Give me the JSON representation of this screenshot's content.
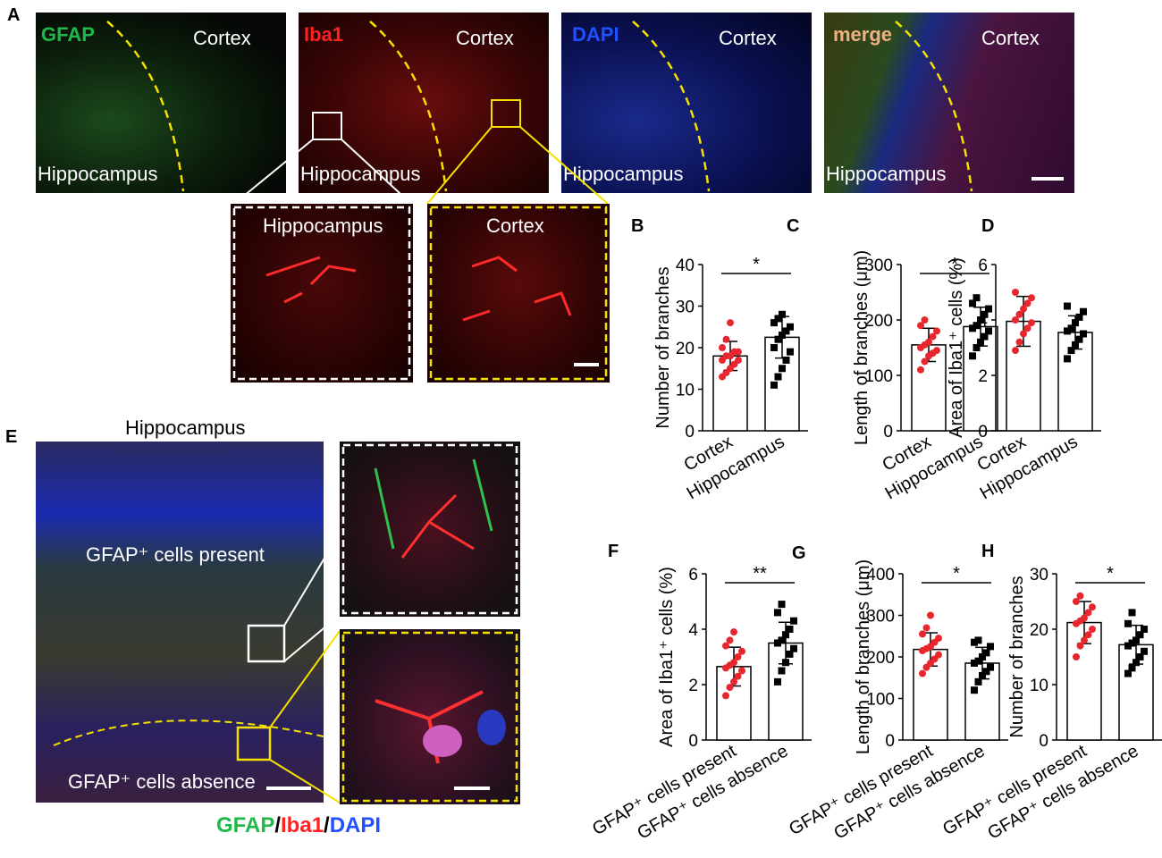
{
  "panel_letters": {
    "A": "A",
    "B": "B",
    "C": "C",
    "D": "D",
    "E": "E",
    "F": "F",
    "G": "G",
    "H": "H"
  },
  "panel_A": {
    "images": [
      {
        "channel": "GFAP",
        "region_top": "Cortex",
        "region_bottom": "Hippocampus",
        "channel_color": "#1fb84a"
      },
      {
        "channel": "Iba1",
        "region_top": "Cortex",
        "region_bottom": "Hippocampus",
        "channel_color": "#ff2020"
      },
      {
        "channel": "DAPI",
        "region_top": "Cortex",
        "region_bottom": "Hippocampus",
        "channel_color": "#2050ff"
      },
      {
        "channel": "merge",
        "region_top": "Cortex",
        "region_bottom": "Hippocampus",
        "channel_color": "#f0b080"
      }
    ],
    "insets": [
      {
        "label": "Hippocampus",
        "border_color": "#ffffff"
      },
      {
        "label": "Cortex",
        "border_color": "#f5e000"
      }
    ]
  },
  "panel_E": {
    "title": "Hippocampus",
    "label_present": "GFAP⁺ cells present",
    "label_absence": "GFAP⁺ cells absence",
    "legend": {
      "gfap": "GFAP",
      "slash1": "/",
      "iba1": "Iba1",
      "slash2": "/",
      "dapi": "DAPI"
    },
    "legend_colors": {
      "gfap": "#1fb84a",
      "iba1": "#ff2020",
      "dapi": "#2050ff"
    }
  },
  "chart_data": [
    {
      "id": "B",
      "type": "bar",
      "categories": [
        "Cortex",
        "Hippocampus"
      ],
      "values": [
        18,
        22.5
      ],
      "errors": [
        3.5,
        5
      ],
      "ylabel": "Number of branches",
      "ylim": [
        0,
        40
      ],
      "yticks": [
        0,
        10,
        20,
        30,
        40
      ],
      "significance": "*",
      "points": [
        [
          13,
          14,
          15,
          16,
          17,
          17,
          18,
          18,
          19,
          19,
          20,
          22,
          26
        ],
        [
          11,
          13,
          15,
          17,
          19,
          20,
          22,
          23,
          24,
          25,
          26,
          27,
          28
        ]
      ]
    },
    {
      "id": "C",
      "type": "bar",
      "categories": [
        "Cortex",
        "Hippocampus"
      ],
      "values": [
        155,
        188
      ],
      "errors": [
        30,
        35
      ],
      "ylabel": "Length of branches (μm)",
      "ylim": [
        0,
        300
      ],
      "yticks": [
        0,
        100,
        200,
        300
      ],
      "significance": "*",
      "points": [
        [
          110,
          125,
          135,
          140,
          145,
          150,
          155,
          160,
          170,
          180,
          190,
          200
        ],
        [
          135,
          150,
          160,
          170,
          180,
          185,
          190,
          200,
          210,
          220,
          230,
          240
        ]
      ]
    },
    {
      "id": "D",
      "type": "bar",
      "categories": [
        "Cortex",
        "Hippocampus"
      ],
      "values": [
        3.95,
        3.55
      ],
      "errors": [
        0.9,
        0.6
      ],
      "ylabel": "Area of Iba1⁺ cells (%)",
      "ylim": [
        0,
        6
      ],
      "yticks": [
        0,
        2,
        4,
        6
      ],
      "significance": "",
      "points": [
        [
          2.9,
          3.2,
          3.5,
          3.7,
          3.9,
          4.0,
          4.2,
          4.4,
          4.6,
          4.8,
          5.0
        ],
        [
          2.6,
          2.9,
          3.1,
          3.3,
          3.5,
          3.6,
          3.7,
          3.9,
          4.1,
          4.3,
          4.5
        ]
      ]
    },
    {
      "id": "F",
      "type": "bar",
      "categories": [
        "GFAP⁺ cells present",
        "GFAP⁺ cells absence"
      ],
      "values": [
        2.65,
        3.5
      ],
      "errors": [
        0.7,
        0.75
      ],
      "ylabel": "Area of Iba1⁺ cells (%)",
      "ylim": [
        0,
        6
      ],
      "yticks": [
        0,
        2,
        4,
        6
      ],
      "significance": "**",
      "points": [
        [
          1.6,
          1.9,
          2.1,
          2.3,
          2.5,
          2.6,
          2.7,
          2.8,
          3.0,
          3.2,
          3.4,
          3.6,
          3.9
        ],
        [
          2.1,
          2.5,
          2.8,
          3.1,
          3.3,
          3.5,
          3.6,
          3.8,
          4.0,
          4.3,
          4.6,
          4.9
        ]
      ]
    },
    {
      "id": "G",
      "type": "bar",
      "categories": [
        "GFAP⁺ cells present",
        "GFAP⁺ cells absence"
      ],
      "values": [
        218,
        185
      ],
      "errors": [
        40,
        38
      ],
      "ylabel": "Length of branches (μm)",
      "ylim": [
        0,
        400
      ],
      "yticks": [
        0,
        100,
        200,
        300,
        400
      ],
      "significance": "*",
      "points": [
        [
          160,
          175,
          185,
          195,
          205,
          215,
          220,
          225,
          235,
          245,
          255,
          270,
          300
        ],
        [
          120,
          140,
          155,
          165,
          175,
          185,
          190,
          200,
          210,
          225,
          235,
          240
        ]
      ]
    },
    {
      "id": "H",
      "type": "bar",
      "categories": [
        "GFAP⁺ cells present",
        "GFAP⁺ cells absence"
      ],
      "values": [
        21.2,
        17.2
      ],
      "errors": [
        3.8,
        3.5
      ],
      "ylabel": "Number of branches",
      "ylim": [
        0,
        30
      ],
      "yticks": [
        0,
        10,
        20,
        30
      ],
      "significance": "*",
      "points": [
        [
          15,
          17,
          18,
          19,
          20,
          21,
          21.5,
          22,
          23,
          24,
          25,
          26
        ],
        [
          12,
          13,
          14,
          15,
          16,
          17,
          17.5,
          18,
          19,
          20,
          21,
          23
        ]
      ]
    }
  ]
}
